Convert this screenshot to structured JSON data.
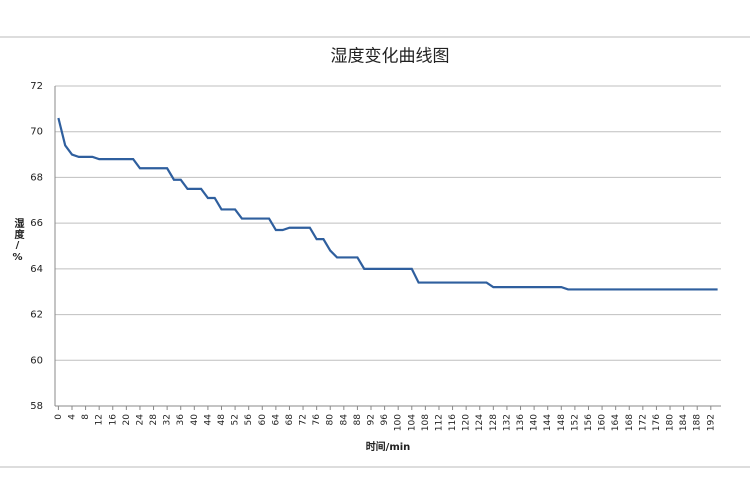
{
  "chart_data": {
    "type": "line",
    "title": "湿度变化曲线图",
    "x_label": "时间/min",
    "y_label": "湿度/%",
    "x": [
      0,
      2,
      4,
      6,
      8,
      10,
      12,
      14,
      16,
      18,
      20,
      22,
      24,
      26,
      28,
      30,
      32,
      34,
      36,
      38,
      40,
      42,
      44,
      46,
      48,
      50,
      52,
      54,
      56,
      58,
      60,
      62,
      64,
      66,
      68,
      70,
      72,
      74,
      76,
      78,
      80,
      82,
      84,
      86,
      88,
      90,
      92,
      94,
      96,
      98,
      100,
      102,
      104,
      106,
      108,
      110,
      112,
      114,
      116,
      118,
      120,
      122,
      124,
      126,
      128,
      130,
      132,
      134,
      136,
      138,
      140,
      142,
      144,
      146,
      148,
      150,
      152,
      154,
      156,
      158,
      160,
      162,
      164,
      166,
      168,
      170,
      172,
      174,
      176,
      178,
      180,
      182,
      184,
      186,
      188,
      190,
      192,
      194
    ],
    "series": [
      {
        "name": "湿度",
        "color": "#2f5f9e",
        "values": [
          70.6,
          69.4,
          69.0,
          68.9,
          68.9,
          68.9,
          68.8,
          68.8,
          68.8,
          68.8,
          68.8,
          68.8,
          68.4,
          68.4,
          68.4,
          68.4,
          68.4,
          67.9,
          67.9,
          67.5,
          67.5,
          67.5,
          67.1,
          67.1,
          66.6,
          66.6,
          66.6,
          66.2,
          66.2,
          66.2,
          66.2,
          66.2,
          65.7,
          65.7,
          65.8,
          65.8,
          65.8,
          65.8,
          65.3,
          65.3,
          64.8,
          64.5,
          64.5,
          64.5,
          64.5,
          64.0,
          64.0,
          64.0,
          64.0,
          64.0,
          64.0,
          64.0,
          64.0,
          63.4,
          63.4,
          63.4,
          63.4,
          63.4,
          63.4,
          63.4,
          63.4,
          63.4,
          63.4,
          63.4,
          63.2,
          63.2,
          63.2,
          63.2,
          63.2,
          63.2,
          63.2,
          63.2,
          63.2,
          63.2,
          63.2,
          63.1,
          63.1,
          63.1,
          63.1,
          63.1,
          63.1,
          63.1,
          63.1,
          63.1,
          63.1,
          63.1,
          63.1,
          63.1,
          63.1,
          63.1,
          63.1,
          63.1,
          63.1,
          63.1,
          63.1,
          63.1,
          63.1,
          63.1
        ]
      }
    ],
    "xlim": [
      -1,
      195
    ],
    "xticks": [
      0,
      4,
      8,
      12,
      16,
      20,
      24,
      28,
      32,
      36,
      40,
      44,
      48,
      52,
      56,
      60,
      64,
      68,
      72,
      76,
      80,
      84,
      88,
      92,
      96,
      100,
      104,
      108,
      112,
      116,
      120,
      124,
      128,
      132,
      136,
      140,
      144,
      148,
      152,
      156,
      160,
      164,
      168,
      172,
      176,
      180,
      184,
      188,
      192
    ],
    "ylim": [
      58,
      72
    ],
    "yticks": [
      58,
      60,
      62,
      64,
      66,
      68,
      70,
      72
    ],
    "grid": true
  }
}
